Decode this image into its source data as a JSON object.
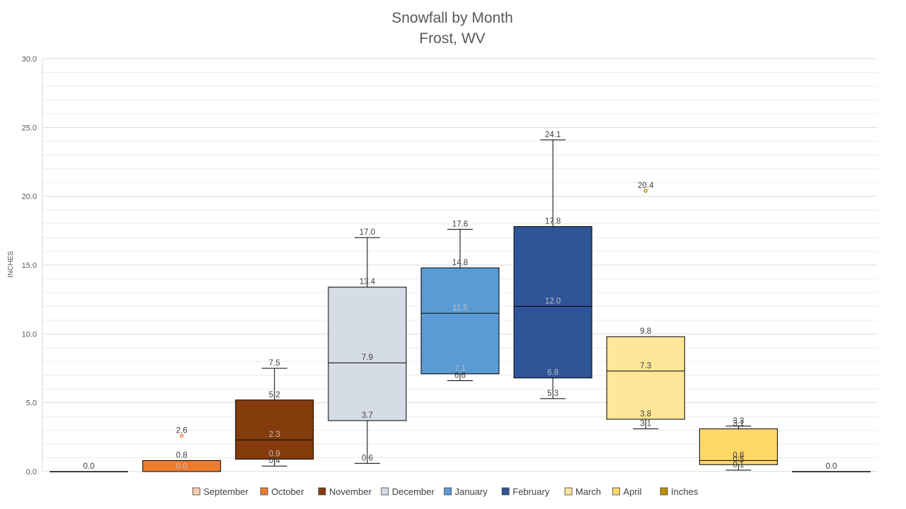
{
  "chart_data": {
    "type": "box",
    "title": "Snowfall by Month",
    "subtitle": "Frost, WV",
    "ylabel": "INCHES",
    "ylim": [
      0,
      30
    ],
    "yticks": [
      0,
      5,
      10,
      15,
      20,
      25,
      30
    ],
    "ytick_labels": [
      "0.0",
      "5.0",
      "10.0",
      "15.0",
      "20.0",
      "25.0",
      "30.0"
    ],
    "grid": true,
    "legend_position": "bottom",
    "legend": [
      "September",
      "October",
      "November",
      "December",
      "January",
      "February",
      "March",
      "April",
      "Inches"
    ],
    "series": [
      {
        "name": "September",
        "color": "#F8CBAD",
        "min": 0.0,
        "q1": 0.0,
        "median": 0.0,
        "q3": 0.0,
        "max": 0.0,
        "outliers": [],
        "labels": [
          "0.0"
        ]
      },
      {
        "name": "October",
        "color": "#ED7D31",
        "min": 0.0,
        "q1": 0.0,
        "median": 0.0,
        "q3": 0.8,
        "max": 0.8,
        "outliers": [
          2.6
        ],
        "labels": [
          "2.6",
          "0.8",
          "0.0"
        ]
      },
      {
        "name": "November",
        "color": "#843C0C",
        "min": 0.4,
        "q1": 0.9,
        "median": 2.3,
        "q3": 5.2,
        "max": 7.5,
        "outliers": [],
        "labels": [
          "7.5",
          "5.2",
          "2.3",
          "0.9",
          "0.4"
        ]
      },
      {
        "name": "December",
        "color": "#D6DCE5",
        "min": 0.6,
        "q1": 3.7,
        "median": 7.9,
        "q3": 13.4,
        "max": 17.0,
        "outliers": [],
        "labels": [
          "17.0",
          "13.4",
          "7.9",
          "3.7",
          "0.6"
        ]
      },
      {
        "name": "January",
        "color": "#5B9BD5",
        "min": 6.6,
        "q1": 7.1,
        "median": 11.5,
        "q3": 14.8,
        "max": 17.6,
        "outliers": [],
        "labels": [
          "17.6",
          "14.8",
          "11.5",
          "7.1",
          "6.6"
        ]
      },
      {
        "name": "February",
        "color": "#2F5597",
        "min": 5.3,
        "q1": 6.8,
        "median": 12.0,
        "q3": 17.8,
        "max": 24.1,
        "outliers": [],
        "labels": [
          "24.1",
          "17.8",
          "12.0",
          "6.8",
          "5.3"
        ]
      },
      {
        "name": "March",
        "color": "#FFE699",
        "min": 3.1,
        "q1": 3.8,
        "median": 7.3,
        "q3": 9.8,
        "max": 9.8,
        "outliers": [
          20.4
        ],
        "labels": [
          "20.4",
          "9.8",
          "7.3",
          "3.8",
          "3.1"
        ]
      },
      {
        "name": "April",
        "color": "#FFD966",
        "min": 0.1,
        "q1": 0.5,
        "median": 0.8,
        "q3": 3.1,
        "max": 3.3,
        "outliers": [],
        "labels": [
          "3.3",
          "3.1",
          "0.8",
          "0.5",
          "0.1"
        ]
      },
      {
        "name": "Inches",
        "color": "#BF9000",
        "min": 0.0,
        "q1": 0.0,
        "median": 0.0,
        "q3": 0.0,
        "max": 0.0,
        "outliers": [],
        "labels": [
          "0.0"
        ]
      }
    ]
  }
}
